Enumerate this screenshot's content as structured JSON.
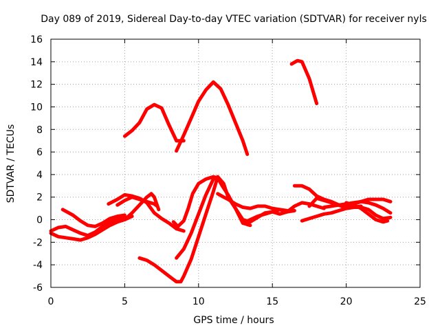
{
  "chart_data": {
    "type": "line",
    "title": "Day 089 of 2019, Sidereal Day-to-day VTEC variation (SDTVAR) for receiver nyls",
    "xlabel": "GPS time / hours",
    "ylabel": "SDTVAR / TECUs",
    "xlim": [
      0,
      25
    ],
    "ylim": [
      -6,
      16
    ],
    "xticks": [
      0,
      5,
      10,
      15,
      20,
      25
    ],
    "yticks": [
      -6,
      -4,
      -2,
      0,
      2,
      4,
      6,
      8,
      10,
      12,
      14,
      16
    ],
    "grid": true,
    "color": "#ff0000",
    "series": [
      {
        "name": "s1",
        "x": [
          5.0,
          5.5,
          6.0,
          6.5,
          7.0,
          7.5,
          8.0,
          8.5,
          9.0
        ],
        "y": [
          7.4,
          7.9,
          8.6,
          9.8,
          10.2,
          9.9,
          8.4,
          7.0,
          7.0
        ]
      },
      {
        "name": "s2",
        "x": [
          8.5,
          9.0,
          9.5,
          10.0,
          10.5,
          11.0,
          11.5,
          12.0,
          12.5,
          13.0,
          13.3
        ],
        "y": [
          6.1,
          7.5,
          9.0,
          10.5,
          11.5,
          12.2,
          11.6,
          10.2,
          8.6,
          7.0,
          5.8
        ]
      },
      {
        "name": "s3",
        "x": [
          16.3,
          16.7,
          17.0,
          17.5,
          18.0
        ],
        "y": [
          13.8,
          14.1,
          14.0,
          12.5,
          10.3
        ]
      },
      {
        "name": "s4",
        "x": [
          0.0,
          0.5,
          1.0,
          1.5,
          2.0,
          2.5,
          3.0,
          3.5,
          4.0,
          4.5,
          5.0,
          5.5
        ],
        "y": [
          -1.2,
          -1.5,
          -1.6,
          -1.7,
          -1.8,
          -1.6,
          -1.3,
          -0.9,
          -0.5,
          -0.2,
          0.0,
          0.3
        ]
      },
      {
        "name": "s5",
        "x": [
          0.0,
          0.5,
          1.0,
          1.5,
          2.0,
          2.5,
          3.0,
          3.5,
          4.0,
          4.5,
          5.0
        ],
        "y": [
          -1.0,
          -0.7,
          -0.6,
          -0.9,
          -1.2,
          -1.4,
          -1.1,
          -0.6,
          -0.2,
          0.0,
          0.2
        ]
      },
      {
        "name": "s6",
        "x": [
          0.8,
          1.5,
          2.0,
          2.5,
          3.0,
          3.5,
          4.0,
          4.5,
          5.0
        ],
        "y": [
          0.9,
          0.4,
          -0.1,
          -0.5,
          -0.6,
          -0.3,
          0.1,
          0.3,
          0.4
        ]
      },
      {
        "name": "s7",
        "x": [
          3.9,
          4.5,
          5.0,
          5.5,
          6.0,
          6.5,
          7.0,
          7.5,
          8.0,
          8.5,
          9.0
        ],
        "y": [
          1.4,
          1.8,
          2.2,
          2.1,
          1.9,
          1.5,
          0.6,
          0.1,
          -0.3,
          -0.8,
          -1.0
        ]
      },
      {
        "name": "s8",
        "x": [
          4.5,
          5.0,
          5.5,
          6.0,
          6.5,
          7.0,
          7.2
        ],
        "y": [
          1.3,
          1.7,
          2.0,
          1.8,
          1.6,
          1.4,
          1.2
        ]
      },
      {
        "name": "s9",
        "x": [
          5.0,
          5.5,
          6.0,
          6.5,
          6.8,
          7.0,
          7.3
        ],
        "y": [
          0.0,
          0.6,
          1.3,
          2.0,
          2.3,
          2.0,
          0.9
        ]
      },
      {
        "name": "s10",
        "x": [
          8.3,
          8.6,
          9.0,
          9.3,
          9.6,
          10.0,
          10.5,
          11.0,
          11.3,
          11.6,
          12.0,
          12.5,
          13.0,
          13.5
        ],
        "y": [
          -0.2,
          -0.6,
          -0.1,
          1.0,
          2.3,
          3.2,
          3.6,
          3.8,
          3.7,
          3.0,
          2.2,
          1.0,
          -0.3,
          -0.5
        ]
      },
      {
        "name": "s11",
        "x": [
          8.5,
          9.0,
          9.5,
          10.0,
          10.5,
          11.0,
          11.3,
          11.7,
          12.0,
          12.5,
          13.0,
          13.5,
          14.0,
          14.5,
          15.0,
          15.5,
          16.0,
          16.5
        ],
        "y": [
          -3.4,
          -2.6,
          -1.2,
          0.5,
          2.2,
          3.6,
          3.8,
          3.2,
          2.0,
          1.0,
          0.0,
          -0.2,
          0.2,
          0.6,
          0.7,
          0.9,
          0.7,
          0.8
        ]
      },
      {
        "name": "s12",
        "x": [
          6.0,
          6.5,
          7.0,
          7.5,
          8.0,
          8.5,
          8.8,
          9.0,
          9.5,
          10.0,
          10.5,
          11.0,
          11.3
        ],
        "y": [
          -3.4,
          -3.6,
          -4.0,
          -4.5,
          -5.0,
          -5.5,
          -5.5,
          -5.0,
          -3.5,
          -1.5,
          0.5,
          2.5,
          3.8
        ]
      },
      {
        "name": "s13",
        "x": [
          11.3,
          11.7,
          12.0,
          12.5,
          13.0,
          13.5,
          14.0,
          14.5,
          15.0,
          15.5,
          16.0
        ],
        "y": [
          2.3,
          2.0,
          1.8,
          1.4,
          1.1,
          1.0,
          1.2,
          1.2,
          1.0,
          0.9,
          0.8
        ]
      },
      {
        "name": "s14",
        "x": [
          13.0,
          13.5,
          14.0,
          14.5,
          15.0,
          15.5,
          16.0,
          16.5,
          17.0,
          17.5,
          18.0,
          18.5
        ],
        "y": [
          -0.3,
          0.0,
          0.3,
          0.5,
          0.7,
          0.5,
          0.7,
          1.2,
          1.5,
          1.4,
          1.2,
          1.0
        ]
      },
      {
        "name": "s15",
        "x": [
          16.5,
          17.0,
          17.5,
          18.0,
          18.5,
          19.0,
          19.5,
          20.0,
          20.5,
          21.0
        ],
        "y": [
          3.0,
          3.0,
          2.7,
          2.1,
          1.8,
          1.6,
          1.3,
          1.0,
          1.1,
          1.2
        ]
      },
      {
        "name": "s16",
        "x": [
          17.5,
          18.0,
          18.5,
          19.0,
          19.5,
          20.0,
          20.5,
          21.0,
          21.5,
          22.0,
          22.5,
          23.0
        ],
        "y": [
          1.2,
          1.9,
          1.7,
          1.5,
          1.3,
          1.2,
          1.4,
          1.6,
          1.8,
          1.8,
          1.8,
          1.6
        ]
      },
      {
        "name": "s17",
        "x": [
          17.0,
          17.5,
          18.0,
          18.5,
          19.0,
          19.5,
          20.0,
          20.5,
          21.0,
          21.5,
          22.0,
          22.5,
          23.0
        ],
        "y": [
          -0.1,
          0.1,
          0.3,
          0.5,
          0.6,
          0.8,
          1.0,
          1.1,
          1.1,
          0.9,
          0.4,
          0.1,
          0.2
        ]
      },
      {
        "name": "s18",
        "x": [
          20.0,
          20.5,
          21.0,
          21.5,
          22.0,
          22.5,
          22.8
        ],
        "y": [
          1.5,
          1.3,
          1.0,
          0.5,
          0.0,
          -0.2,
          -0.1
        ]
      },
      {
        "name": "s19",
        "x": [
          18.5,
          19.0,
          19.5,
          20.0,
          20.5,
          21.0,
          21.5,
          22.0,
          22.5,
          23.0
        ],
        "y": [
          1.1,
          1.2,
          1.3,
          1.4,
          1.5,
          1.6,
          1.5,
          1.3,
          1.0,
          0.6
        ]
      }
    ]
  }
}
